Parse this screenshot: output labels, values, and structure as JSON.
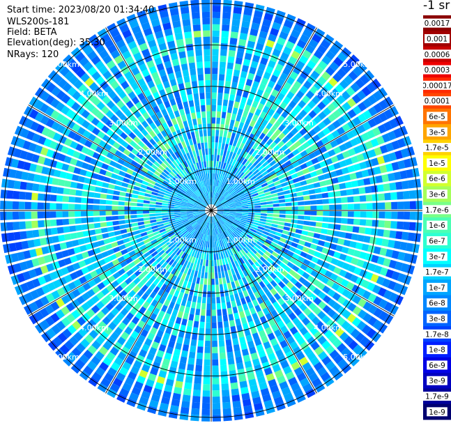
{
  "info": {
    "start_time": "Start time: 2023/08/20 01:34:40",
    "instrument": "WLS200s-181",
    "field": "Field: BETA",
    "elevation": "Elevation(deg): 35.30",
    "nrays": "NRays: 120"
  },
  "colorbar": {
    "title": "-1 sr",
    "entries": [
      {
        "label": "0.0017",
        "color": "#8b0000"
      },
      {
        "label": "0.001",
        "color": "#a10000"
      },
      {
        "label": "0.0006",
        "color": "#c80000"
      },
      {
        "label": "0.0003",
        "color": "#ee0000"
      },
      {
        "label": "0.00017",
        "color": "#ff2a00"
      },
      {
        "label": "0.0001",
        "color": "#ff4500"
      },
      {
        "label": "6e-5",
        "color": "#ff7400"
      },
      {
        "label": "3e-5",
        "color": "#ffa500"
      },
      {
        "label": "1.7e-5",
        "color": "#ffd200"
      },
      {
        "label": "1e-5",
        "color": "#ffff00"
      },
      {
        "label": "6e-6",
        "color": "#d2ff2d"
      },
      {
        "label": "3e-6",
        "color": "#a5ff5a"
      },
      {
        "label": "1.7e-6",
        "color": "#78ff87"
      },
      {
        "label": "1e-6",
        "color": "#4bffb4"
      },
      {
        "label": "6e-7",
        "color": "#2dffd2"
      },
      {
        "label": "3e-7",
        "color": "#00ffff"
      },
      {
        "label": "1.7e-7",
        "color": "#00d2ff"
      },
      {
        "label": "1e-7",
        "color": "#00a5ff"
      },
      {
        "label": "6e-8",
        "color": "#0087ff"
      },
      {
        "label": "3e-8",
        "color": "#0064ff"
      },
      {
        "label": "1.7e-8",
        "color": "#0041ff"
      },
      {
        "label": "1e-8",
        "color": "#001eff"
      },
      {
        "label": "6e-9",
        "color": "#0000e6"
      },
      {
        "label": "3e-9",
        "color": "#0000c0"
      },
      {
        "label": "1.7e-9",
        "color": "#00009a"
      },
      {
        "label": "1e-9",
        "color": "#000070"
      }
    ]
  },
  "chart_data": {
    "type": "heatmap",
    "projection": "polar (PPI scan)",
    "field": "BETA",
    "units": "sr-1",
    "elevation_deg": 35.3,
    "n_rays": 120,
    "range_ring_labels_km": [
      "1.00km",
      "2.00km",
      "3.00km",
      "4.00km",
      "5.00km"
    ],
    "range_rings_km": [
      1,
      2,
      3,
      4,
      5
    ],
    "azimuth_spokes_deg": [
      0,
      30,
      60,
      90,
      120,
      150,
      180,
      210,
      240,
      270,
      300,
      330
    ],
    "color_scale": "log",
    "dominant_values": [
      "1e-8",
      "1.7e-8",
      "3e-8",
      "6e-8",
      "1e-7",
      "1.7e-7",
      "3e-7",
      "6e-7",
      "1e-6",
      "1.7e-6"
    ],
    "max_range_km": 5.1
  }
}
